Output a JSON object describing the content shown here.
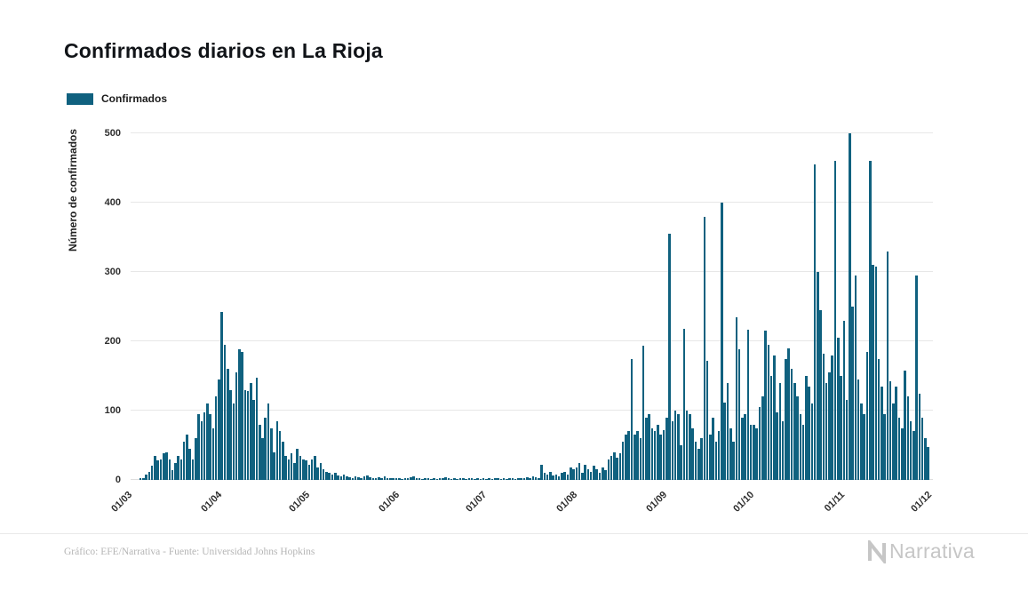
{
  "title": "Confirmados diarios en La Rioja",
  "legend": {
    "label": "Confirmados"
  },
  "chart_data": {
    "type": "bar",
    "title": "Confirmados diarios en La Rioja",
    "series_name": "Confirmados",
    "xlabel": "",
    "ylabel": "Número de confirmados",
    "ylim": [
      0,
      500
    ],
    "yticks": [
      0,
      100,
      200,
      300,
      400,
      500
    ],
    "grid": "horizontal",
    "legend_position": "top-left",
    "bar_color": "#10617f",
    "x_tick_labels": [
      "01/03",
      "01/04",
      "01/05",
      "01/06",
      "01/07",
      "01/08",
      "01/09",
      "01/10",
      "01/11",
      "01/12"
    ],
    "x_tick_day_index": [
      0,
      31,
      61,
      92,
      122,
      153,
      184,
      214,
      245,
      275
    ],
    "total_days": 276,
    "values": [
      0,
      0,
      0,
      2,
      3,
      8,
      12,
      20,
      35,
      28,
      30,
      38,
      40,
      30,
      14,
      25,
      35,
      30,
      55,
      65,
      45,
      30,
      60,
      95,
      85,
      98,
      110,
      95,
      75,
      120,
      145,
      242,
      195,
      160,
      130,
      110,
      155,
      188,
      185,
      130,
      128,
      140,
      115,
      148,
      80,
      60,
      90,
      110,
      75,
      40,
      85,
      70,
      55,
      35,
      30,
      38,
      25,
      45,
      35,
      30,
      28,
      22,
      30,
      35,
      18,
      25,
      15,
      12,
      10,
      8,
      10,
      6,
      5,
      8,
      5,
      4,
      3,
      5,
      4,
      3,
      5,
      6,
      4,
      3,
      2,
      4,
      3,
      5,
      3,
      2,
      3,
      2,
      2,
      1,
      3,
      2,
      4,
      5,
      3,
      2,
      1,
      2,
      3,
      1,
      2,
      1,
      3,
      2,
      4,
      2,
      1,
      2,
      1,
      3,
      2,
      1,
      2,
      3,
      1,
      2,
      1,
      2,
      1,
      2,
      1,
      3,
      2,
      1,
      2,
      1,
      2,
      3,
      1,
      2,
      3,
      2,
      4,
      3,
      5,
      4,
      3,
      22,
      10,
      8,
      12,
      6,
      8,
      5,
      10,
      12,
      8,
      18,
      15,
      18,
      25,
      10,
      22,
      15,
      12,
      20,
      15,
      10,
      18,
      14,
      30,
      35,
      40,
      32,
      38,
      55,
      65,
      70,
      175,
      65,
      70,
      60,
      193,
      90,
      95,
      75,
      70,
      80,
      65,
      72,
      90,
      355,
      85,
      100,
      95,
      50,
      218,
      100,
      95,
      75,
      55,
      45,
      60,
      380,
      172,
      65,
      90,
      55,
      70,
      400,
      112,
      140,
      75,
      55,
      235,
      188,
      90,
      95,
      217,
      80,
      80,
      75,
      105,
      120,
      215,
      195,
      150,
      180,
      98,
      140,
      85,
      175,
      190,
      160,
      140,
      120,
      95,
      80,
      150,
      135,
      110,
      455,
      300,
      245,
      182,
      140,
      155,
      180,
      460,
      205,
      150,
      230,
      115,
      500,
      250,
      295,
      145,
      110,
      95,
      185,
      460,
      310,
      308,
      175,
      135,
      95,
      330,
      142,
      110,
      135,
      90,
      75,
      158,
      120,
      85,
      70,
      295,
      125,
      90,
      60,
      48
    ]
  },
  "footer": {
    "credit": "Gráfico: EFE/Narrativa - Fuente: Universidad Johns Hopkins",
    "logo_text": "Narrativa"
  }
}
